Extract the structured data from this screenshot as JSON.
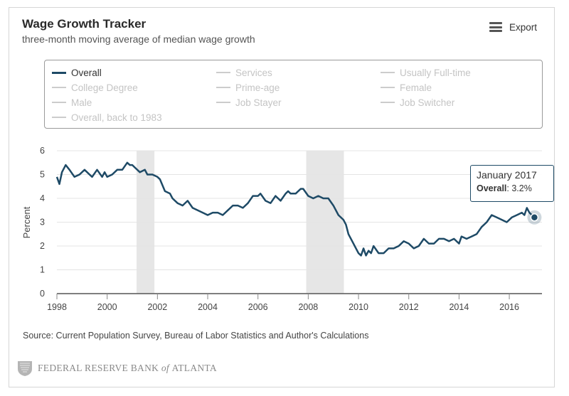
{
  "header": {
    "title": "Wage Growth Tracker",
    "subtitle": "three-month moving average of median wage growth",
    "export_label": "Export",
    "export_icon": "hamburger-menu-icon"
  },
  "legend": {
    "items": [
      {
        "label": "Overall",
        "active": true
      },
      {
        "label": "Services",
        "active": false
      },
      {
        "label": "Usually Full-time",
        "active": false
      },
      {
        "label": "College Degree",
        "active": false
      },
      {
        "label": "Prime-age",
        "active": false
      },
      {
        "label": "Female",
        "active": false
      },
      {
        "label": "Male",
        "active": false
      },
      {
        "label": "Job Stayer",
        "active": false
      },
      {
        "label": "Job Switcher",
        "active": false
      },
      {
        "label": "Overall, back to 1983",
        "active": false
      }
    ]
  },
  "tooltip": {
    "date": "January 2017",
    "series": "Overall",
    "value_text": "3.2%"
  },
  "source": "Source: Current Population Survey, Bureau of Labor Statistics and Author's Calculations",
  "footer": {
    "institution_pre": "FEDERAL RESERVE BANK",
    "institution_of": "of",
    "institution_post": "ATLANTA",
    "seal_icon": "fed-seal-icon"
  },
  "colors": {
    "series_line": "#1e4a66",
    "recession_band": "#e6e6e6",
    "grid": "#e4e4e4",
    "axis": "#555555"
  },
  "chart_data": {
    "type": "line",
    "title": "Wage Growth Tracker",
    "subtitle": "three-month moving average of median wage growth",
    "xlabel": "",
    "ylabel": "Percent",
    "xlim": [
      1998,
      2017.3
    ],
    "ylim": [
      0,
      6
    ],
    "x_ticks": [
      1998,
      2000,
      2002,
      2004,
      2006,
      2008,
      2010,
      2012,
      2014,
      2016
    ],
    "y_ticks": [
      0,
      1,
      2,
      3,
      4,
      5,
      6
    ],
    "grid": true,
    "recessions": [
      [
        2001.17,
        2001.88
      ],
      [
        2007.92,
        2009.42
      ]
    ],
    "series": [
      {
        "name": "Overall",
        "x": [
          1998.0,
          1998.1,
          1998.2,
          1998.35,
          1998.5,
          1998.7,
          1998.9,
          1999.1,
          1999.3,
          1999.4,
          1999.6,
          1999.8,
          1999.9,
          2000.0,
          2000.2,
          2000.4,
          2000.6,
          2000.8,
          2000.9,
          2001.0,
          2001.1,
          2001.3,
          2001.5,
          2001.6,
          2001.8,
          2002.0,
          2002.1,
          2002.3,
          2002.5,
          2002.6,
          2002.8,
          2003.0,
          2003.2,
          2003.4,
          2003.6,
          2003.8,
          2004.0,
          2004.2,
          2004.4,
          2004.6,
          2004.8,
          2005.0,
          2005.2,
          2005.4,
          2005.6,
          2005.8,
          2006.0,
          2006.1,
          2006.3,
          2006.5,
          2006.7,
          2006.9,
          2007.1,
          2007.2,
          2007.3,
          2007.5,
          2007.7,
          2007.8,
          2008.0,
          2008.2,
          2008.4,
          2008.6,
          2008.8,
          2009.0,
          2009.2,
          2009.4,
          2009.5,
          2009.6,
          2009.75,
          2009.9,
          2010.0,
          2010.1,
          2010.2,
          2010.3,
          2010.4,
          2010.5,
          2010.6,
          2010.8,
          2011.0,
          2011.2,
          2011.4,
          2011.6,
          2011.8,
          2012.0,
          2012.2,
          2012.4,
          2012.6,
          2012.8,
          2013.0,
          2013.2,
          2013.4,
          2013.6,
          2013.8,
          2014.0,
          2014.1,
          2014.3,
          2014.5,
          2014.7,
          2014.9,
          2015.1,
          2015.3,
          2015.5,
          2015.7,
          2015.9,
          2016.1,
          2016.3,
          2016.5,
          2016.6,
          2016.7,
          2016.8,
          2017.0
        ],
        "y": [
          4.9,
          4.6,
          5.1,
          5.4,
          5.2,
          4.9,
          5.0,
          5.2,
          5.0,
          4.9,
          5.2,
          4.9,
          5.1,
          4.9,
          5.0,
          5.2,
          5.2,
          5.5,
          5.4,
          5.4,
          5.3,
          5.1,
          5.2,
          5.0,
          5.0,
          4.9,
          4.8,
          4.3,
          4.2,
          4.0,
          3.8,
          3.7,
          3.9,
          3.6,
          3.5,
          3.4,
          3.3,
          3.4,
          3.4,
          3.3,
          3.5,
          3.7,
          3.7,
          3.6,
          3.8,
          4.1,
          4.1,
          4.2,
          3.9,
          3.8,
          4.1,
          3.9,
          4.2,
          4.3,
          4.2,
          4.2,
          4.4,
          4.4,
          4.1,
          4.0,
          4.1,
          4.0,
          4.0,
          3.7,
          3.3,
          3.1,
          2.9,
          2.5,
          2.2,
          1.9,
          1.7,
          1.6,
          1.9,
          1.6,
          1.8,
          1.7,
          2.0,
          1.7,
          1.7,
          1.9,
          1.9,
          2.0,
          2.2,
          2.1,
          1.9,
          2.0,
          2.3,
          2.1,
          2.1,
          2.3,
          2.3,
          2.2,
          2.3,
          2.1,
          2.4,
          2.3,
          2.4,
          2.5,
          2.8,
          3.0,
          3.3,
          3.2,
          3.1,
          3.0,
          3.2,
          3.3,
          3.4,
          3.3,
          3.6,
          3.4,
          3.2
        ]
      }
    ],
    "highlight": {
      "x": 2017.0,
      "y": 3.2,
      "label": "January 2017"
    }
  }
}
